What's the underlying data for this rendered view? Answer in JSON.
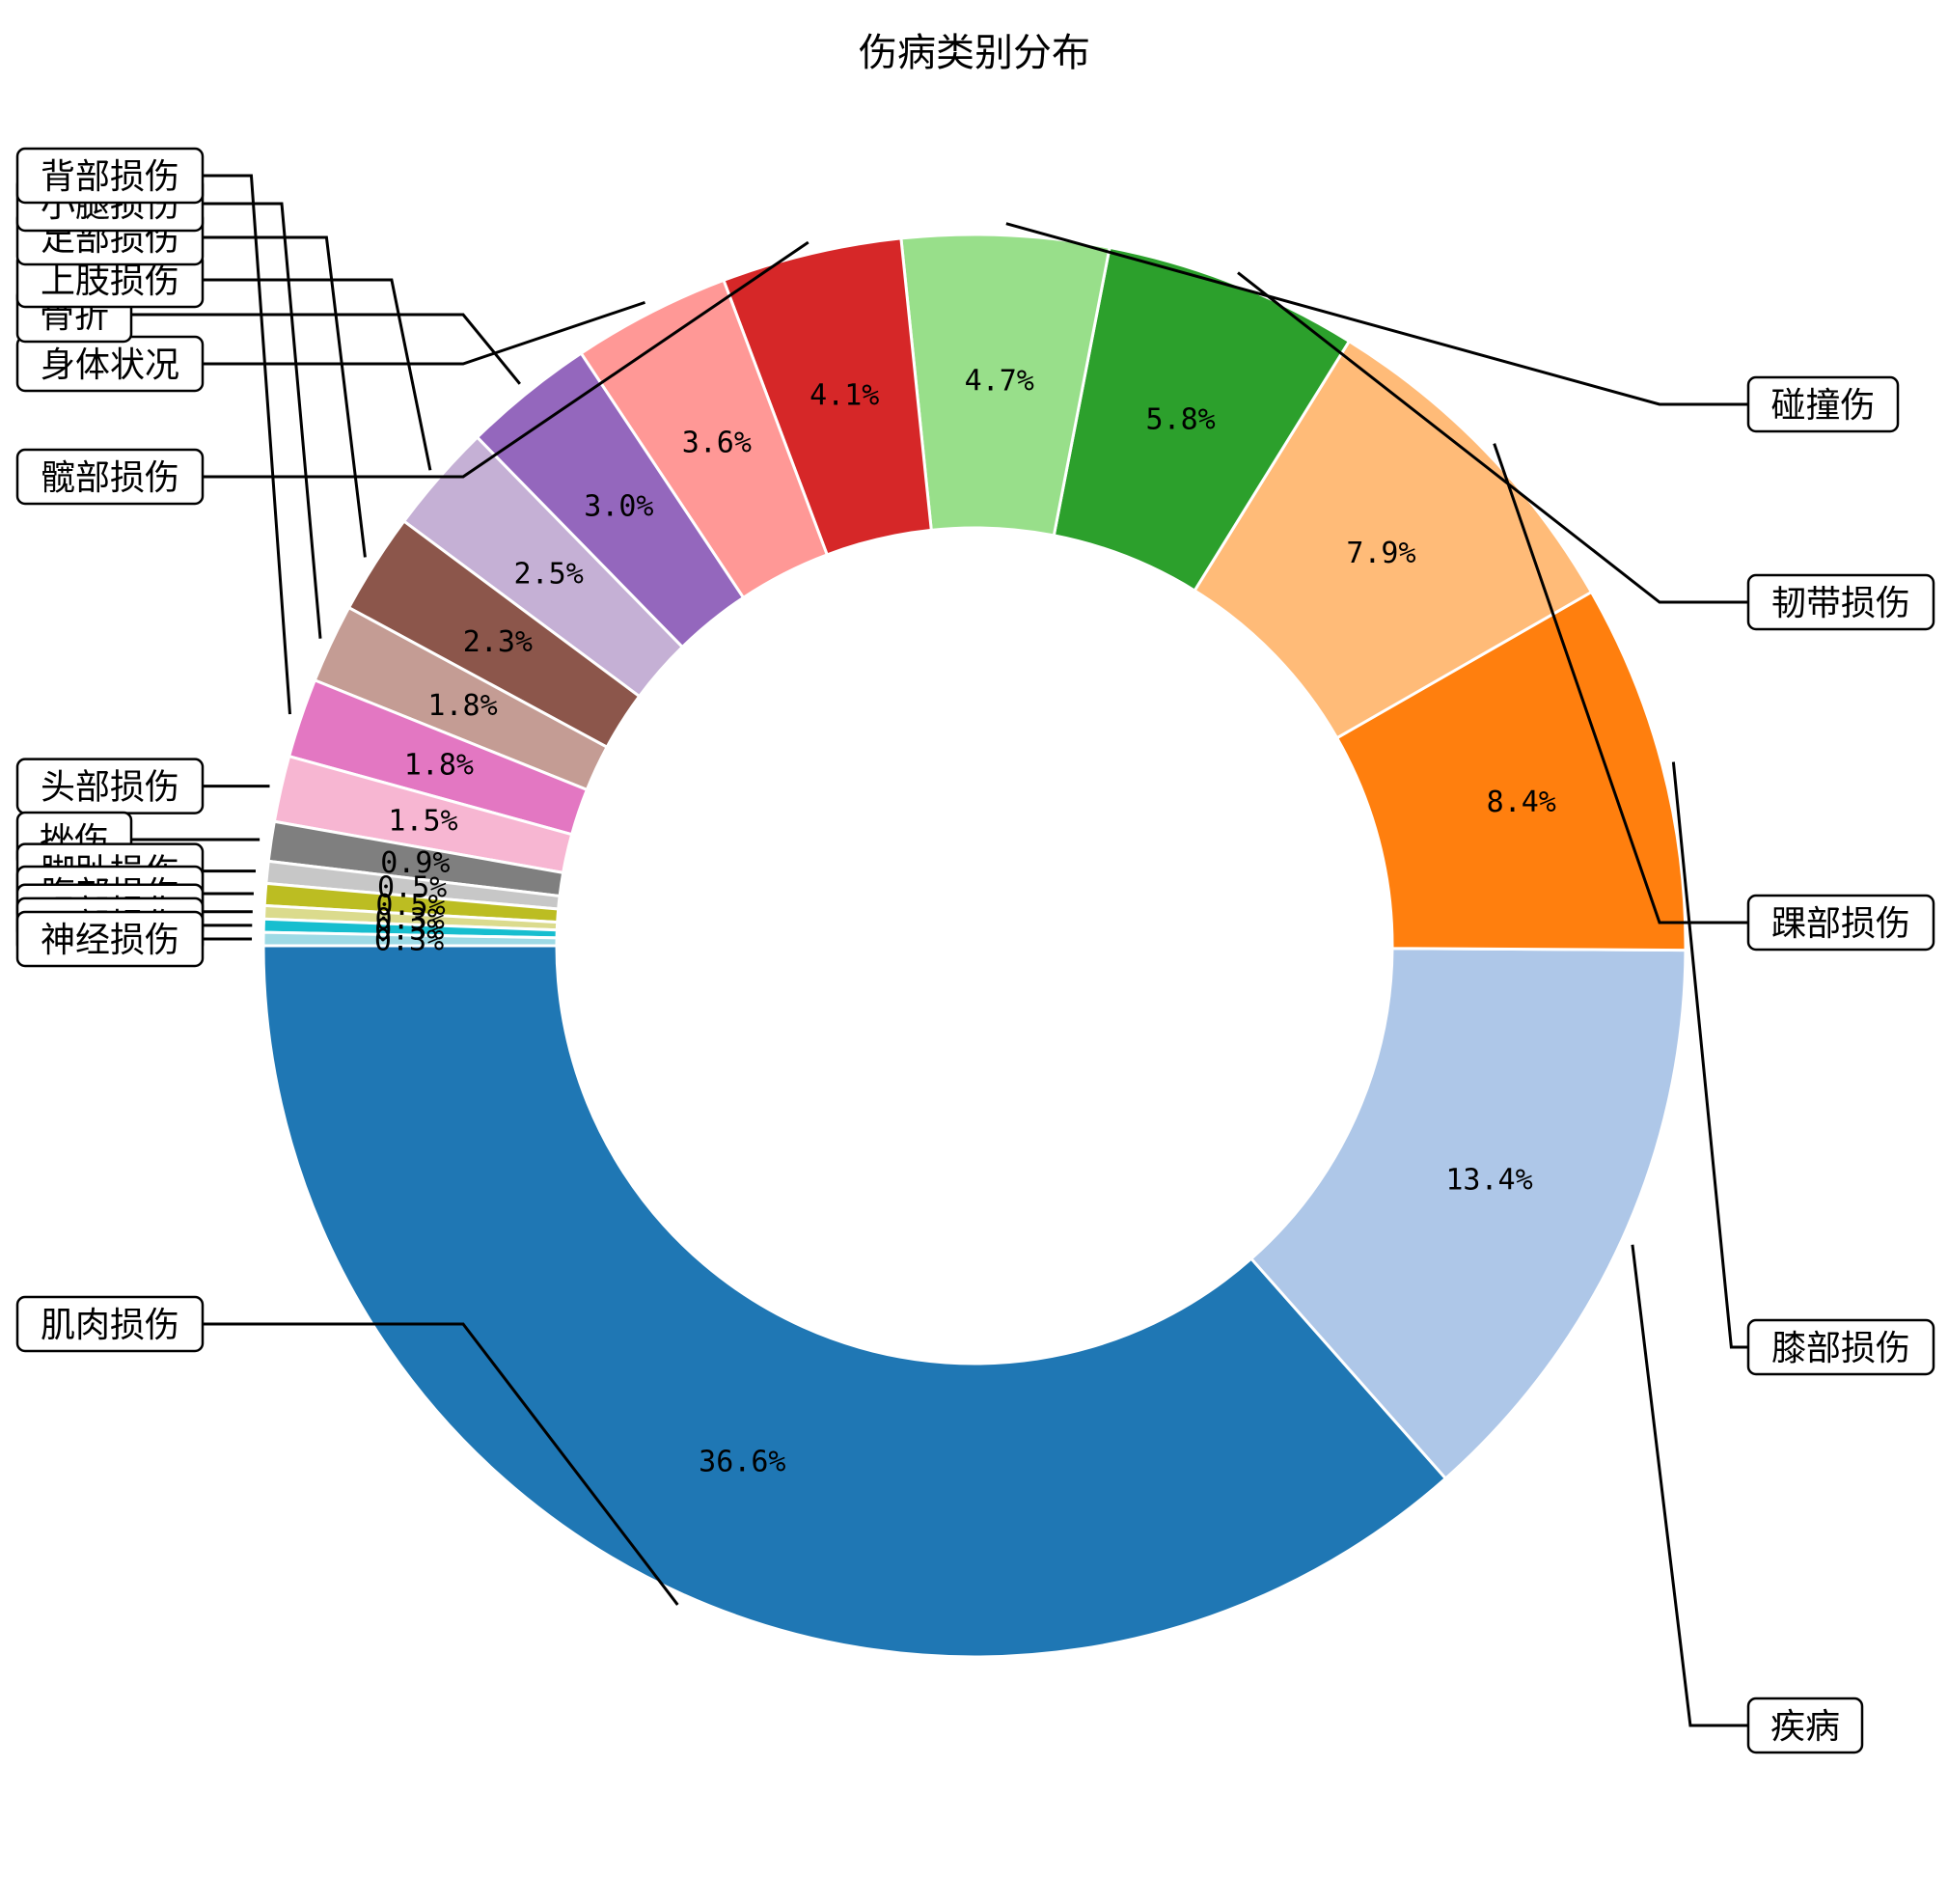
{
  "chart_data": {
    "type": "pie",
    "donut": true,
    "title": "伤病类别分布",
    "categories": [
      "肌肉损伤",
      "疾病",
      "膝部损伤",
      "踝部损伤",
      "韧带损伤",
      "碰撞伤",
      "髋部损伤",
      "身体状况",
      "骨折",
      "上肢损伤",
      "足部损伤",
      "小腿损伤",
      "背部损伤",
      "头部损伤",
      "挫伤",
      "脚趾损伤",
      "腹部损伤",
      "眼部损伤",
      "面部损伤",
      "神经损伤"
    ],
    "values": [
      36.6,
      13.4,
      8.4,
      7.9,
      5.8,
      4.7,
      4.1,
      3.6,
      3.0,
      2.5,
      2.3,
      1.8,
      1.8,
      1.5,
      0.9,
      0.5,
      0.5,
      0.3,
      0.3,
      0.3
    ],
    "pct_labels": [
      "36.6%",
      "13.4%",
      "8.4%",
      "7.9%",
      "5.8%",
      "4.7%",
      "4.1%",
      "3.6%",
      "3.0%",
      "2.5%",
      "2.3%",
      "1.8%",
      "1.8%",
      "1.5%",
      "0.9%",
      "0.5%",
      "0.5%",
      "0.3%",
      "0.3%",
      "0.3%"
    ],
    "colors": [
      "#1f77b4",
      "#aec7e8",
      "#ff7f0e",
      "#ffbb78",
      "#2ca02c",
      "#98df8a",
      "#d62728",
      "#ff9896",
      "#9467bd",
      "#c5b0d5",
      "#8c564b",
      "#c49c94",
      "#e377c2",
      "#f7b6d2",
      "#7f7f7f",
      "#c7c7c7",
      "#bcbd22",
      "#dbdb8d",
      "#17becf",
      "#9edae5"
    ],
    "start_angle_deg": 180,
    "direction": "counterclockwise",
    "legend": "none"
  }
}
